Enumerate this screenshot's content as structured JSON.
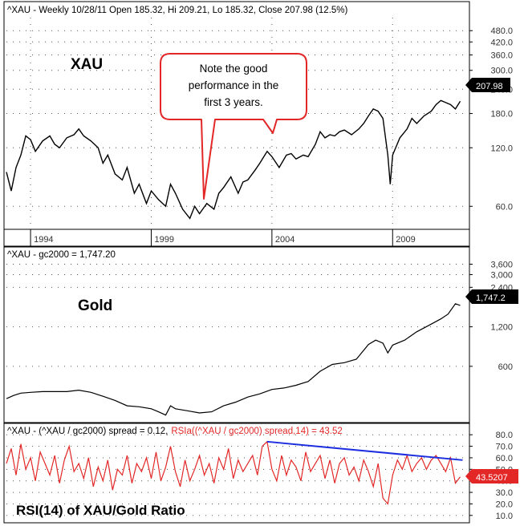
{
  "chart_data": [
    {
      "type": "line",
      "panel": "xau",
      "header": "^XAU - Weekly 10/28/11 Open 185.32, Hi 209.21, Lo 185.32, Close 207.98 (12.5%)",
      "label": "XAU",
      "annotation": "Note the good performance in the first 3 years.",
      "annotation_lines": [
        "Note the good",
        "performance in the",
        "first 3 years."
      ],
      "scale": "log",
      "ylim": [
        40,
        560
      ],
      "yticks": [
        60,
        120,
        180,
        240,
        300,
        360,
        420,
        480
      ],
      "ytick_labels": [
        "60.0",
        "120.0",
        "180.0",
        "240.0",
        "300.0",
        "360.0",
        "420.0",
        "480.0"
      ],
      "last_value": 207.98,
      "last_value_label": "207.98",
      "x_tick_labels": [
        "1994",
        "1999",
        "2004",
        "2009"
      ],
      "x_tick_years": [
        1994,
        1999,
        2004,
        2009
      ],
      "series": [
        {
          "x": [
            1993.0,
            1993.2,
            1993.4,
            1993.6,
            1993.8,
            1994.0,
            1994.2,
            1994.5,
            1994.8,
            1995.0,
            1995.2,
            1995.5,
            1995.8,
            1996.0,
            1996.2,
            1996.5,
            1996.8,
            1997.0,
            1997.2,
            1997.5,
            1997.8,
            1998.0,
            1998.3,
            1998.5,
            1998.8,
            1999.0,
            1999.3,
            1999.6,
            1999.8,
            2000.0,
            2000.3,
            2000.6,
            2000.8,
            2001.0,
            2001.3,
            2001.6,
            2001.8,
            2002.0,
            2002.3,
            2002.6,
            2002.8,
            2003.0,
            2003.3,
            2003.5,
            2003.8,
            2004.0,
            2004.3,
            2004.6,
            2004.8,
            2005.0,
            2005.3,
            2005.5,
            2005.8,
            2006.0,
            2006.2,
            2006.4,
            2006.6,
            2006.8,
            2007.0,
            2007.3,
            2007.6,
            2007.8,
            2008.0,
            2008.2,
            2008.4,
            2008.6,
            2008.8,
            2008.9,
            2009.0,
            2009.3,
            2009.6,
            2009.8,
            2010.0,
            2010.3,
            2010.6,
            2010.8,
            2011.0,
            2011.2,
            2011.4,
            2011.6,
            2011.8
          ],
          "values": [
            90,
            72,
            95,
            110,
            138,
            132,
            115,
            130,
            138,
            125,
            120,
            135,
            140,
            150,
            138,
            130,
            120,
            100,
            110,
            88,
            82,
            95,
            70,
            78,
            62,
            72,
            65,
            60,
            78,
            70,
            58,
            52,
            60,
            55,
            62,
            58,
            70,
            75,
            85,
            70,
            80,
            82,
            92,
            100,
            115,
            108,
            95,
            110,
            112,
            105,
            110,
            108,
            125,
            145,
            135,
            140,
            138,
            145,
            148,
            140,
            150,
            160,
            175,
            190,
            185,
            170,
            110,
            78,
            110,
            135,
            150,
            170,
            160,
            175,
            185,
            200,
            210,
            205,
            200,
            190,
            208
          ]
        }
      ]
    },
    {
      "type": "line",
      "panel": "gold",
      "header": "^XAU - gc2000 = 1,747.20",
      "label": "Gold",
      "scale": "log",
      "ylim": [
        240,
        4000
      ],
      "yticks": [
        600,
        1200,
        2400,
        3000,
        3600
      ],
      "ytick_labels": [
        "600",
        "1,200",
        "2,400",
        "3,000",
        "3,600"
      ],
      "last_value": 1747.2,
      "last_value_label": "1,747.2",
      "series": [
        {
          "x": [
            1993.0,
            1993.3,
            1993.6,
            1994.0,
            1994.5,
            1995.0,
            1995.5,
            1996.0,
            1996.5,
            1997.0,
            1997.5,
            1998.0,
            1998.5,
            1999.0,
            1999.3,
            1999.6,
            1999.8,
            2000.0,
            2000.5,
            2001.0,
            2001.5,
            2002.0,
            2002.5,
            2003.0,
            2003.5,
            2004.0,
            2004.5,
            2005.0,
            2005.5,
            2006.0,
            2006.5,
            2007.0,
            2007.5,
            2008.0,
            2008.3,
            2008.6,
            2008.8,
            2009.0,
            2009.5,
            2010.0,
            2010.5,
            2011.0,
            2011.3,
            2011.6,
            2011.8
          ],
          "values": [
            340,
            360,
            375,
            380,
            385,
            385,
            385,
            395,
            380,
            355,
            330,
            300,
            295,
            285,
            270,
            255,
            300,
            285,
            275,
            265,
            270,
            300,
            320,
            350,
            370,
            400,
            410,
            430,
            460,
            550,
            620,
            640,
            680,
            880,
            950,
            900,
            760,
            870,
            950,
            1100,
            1230,
            1380,
            1500,
            1800,
            1747
          ]
        }
      ]
    },
    {
      "type": "line",
      "panel": "rsi",
      "header_black": "^XAU - (^XAU / gc2000) spread = 0.12,",
      "header_red": "RSIa((^XAU / gc2000) spread,14) = 43.52",
      "label": "RSI(14) of XAU/Gold Ratio",
      "ylim": [
        5,
        85
      ],
      "yticks": [
        10,
        20,
        30,
        40,
        50,
        60,
        70,
        80
      ],
      "ytick_labels": [
        "10.0",
        "20.0",
        "30.0",
        "40.0",
        "50.0",
        "60.0",
        "70.0",
        "80.0"
      ],
      "last_value": 43.5207,
      "last_value_label": "43.5207",
      "trendline": {
        "x": [
          2003.8,
          2011.9
        ],
        "y": [
          74,
          58
        ]
      },
      "series": [
        {
          "x": [
            1993.0,
            1993.2,
            1993.4,
            1993.6,
            1993.8,
            1994.0,
            1994.2,
            1994.4,
            1994.6,
            1994.8,
            1995.0,
            1995.2,
            1995.4,
            1995.6,
            1995.8,
            1996.0,
            1996.2,
            1996.4,
            1996.6,
            1996.8,
            1997.0,
            1997.2,
            1997.4,
            1997.6,
            1997.8,
            1998.0,
            1998.2,
            1998.4,
            1998.6,
            1998.8,
            1999.0,
            1999.2,
            1999.4,
            1999.6,
            1999.8,
            2000.0,
            2000.2,
            2000.4,
            2000.6,
            2000.8,
            2001.0,
            2001.2,
            2001.4,
            2001.6,
            2001.8,
            2002.0,
            2002.2,
            2002.4,
            2002.6,
            2002.8,
            2003.0,
            2003.2,
            2003.4,
            2003.6,
            2003.8,
            2004.0,
            2004.2,
            2004.4,
            2004.6,
            2004.8,
            2005.0,
            2005.2,
            2005.4,
            2005.6,
            2005.8,
            2006.0,
            2006.2,
            2006.4,
            2006.6,
            2006.8,
            2007.0,
            2007.2,
            2007.4,
            2007.6,
            2007.8,
            2008.0,
            2008.2,
            2008.4,
            2008.6,
            2008.8,
            2009.0,
            2009.2,
            2009.4,
            2009.6,
            2009.8,
            2010.0,
            2010.2,
            2010.4,
            2010.6,
            2010.8,
            2011.0,
            2011.2,
            2011.4,
            2011.6,
            2011.8
          ],
          "values": [
            55,
            68,
            45,
            72,
            50,
            60,
            40,
            65,
            55,
            45,
            62,
            38,
            58,
            70,
            48,
            55,
            42,
            60,
            35,
            52,
            40,
            58,
            32,
            50,
            45,
            62,
            38,
            55,
            48,
            60,
            42,
            65,
            40,
            52,
            70,
            48,
            35,
            58,
            40,
            50,
            62,
            45,
            55,
            38,
            60,
            50,
            68,
            42,
            58,
            48,
            55,
            62,
            45,
            70,
            74,
            50,
            40,
            62,
            45,
            58,
            52,
            40,
            65,
            48,
            55,
            62,
            42,
            58,
            38,
            55,
            60,
            45,
            52,
            40,
            58,
            48,
            35,
            55,
            25,
            20,
            45,
            58,
            50,
            62,
            48,
            55,
            60,
            50,
            58,
            62,
            55,
            48,
            60,
            38,
            43.5
          ]
        }
      ]
    }
  ]
}
